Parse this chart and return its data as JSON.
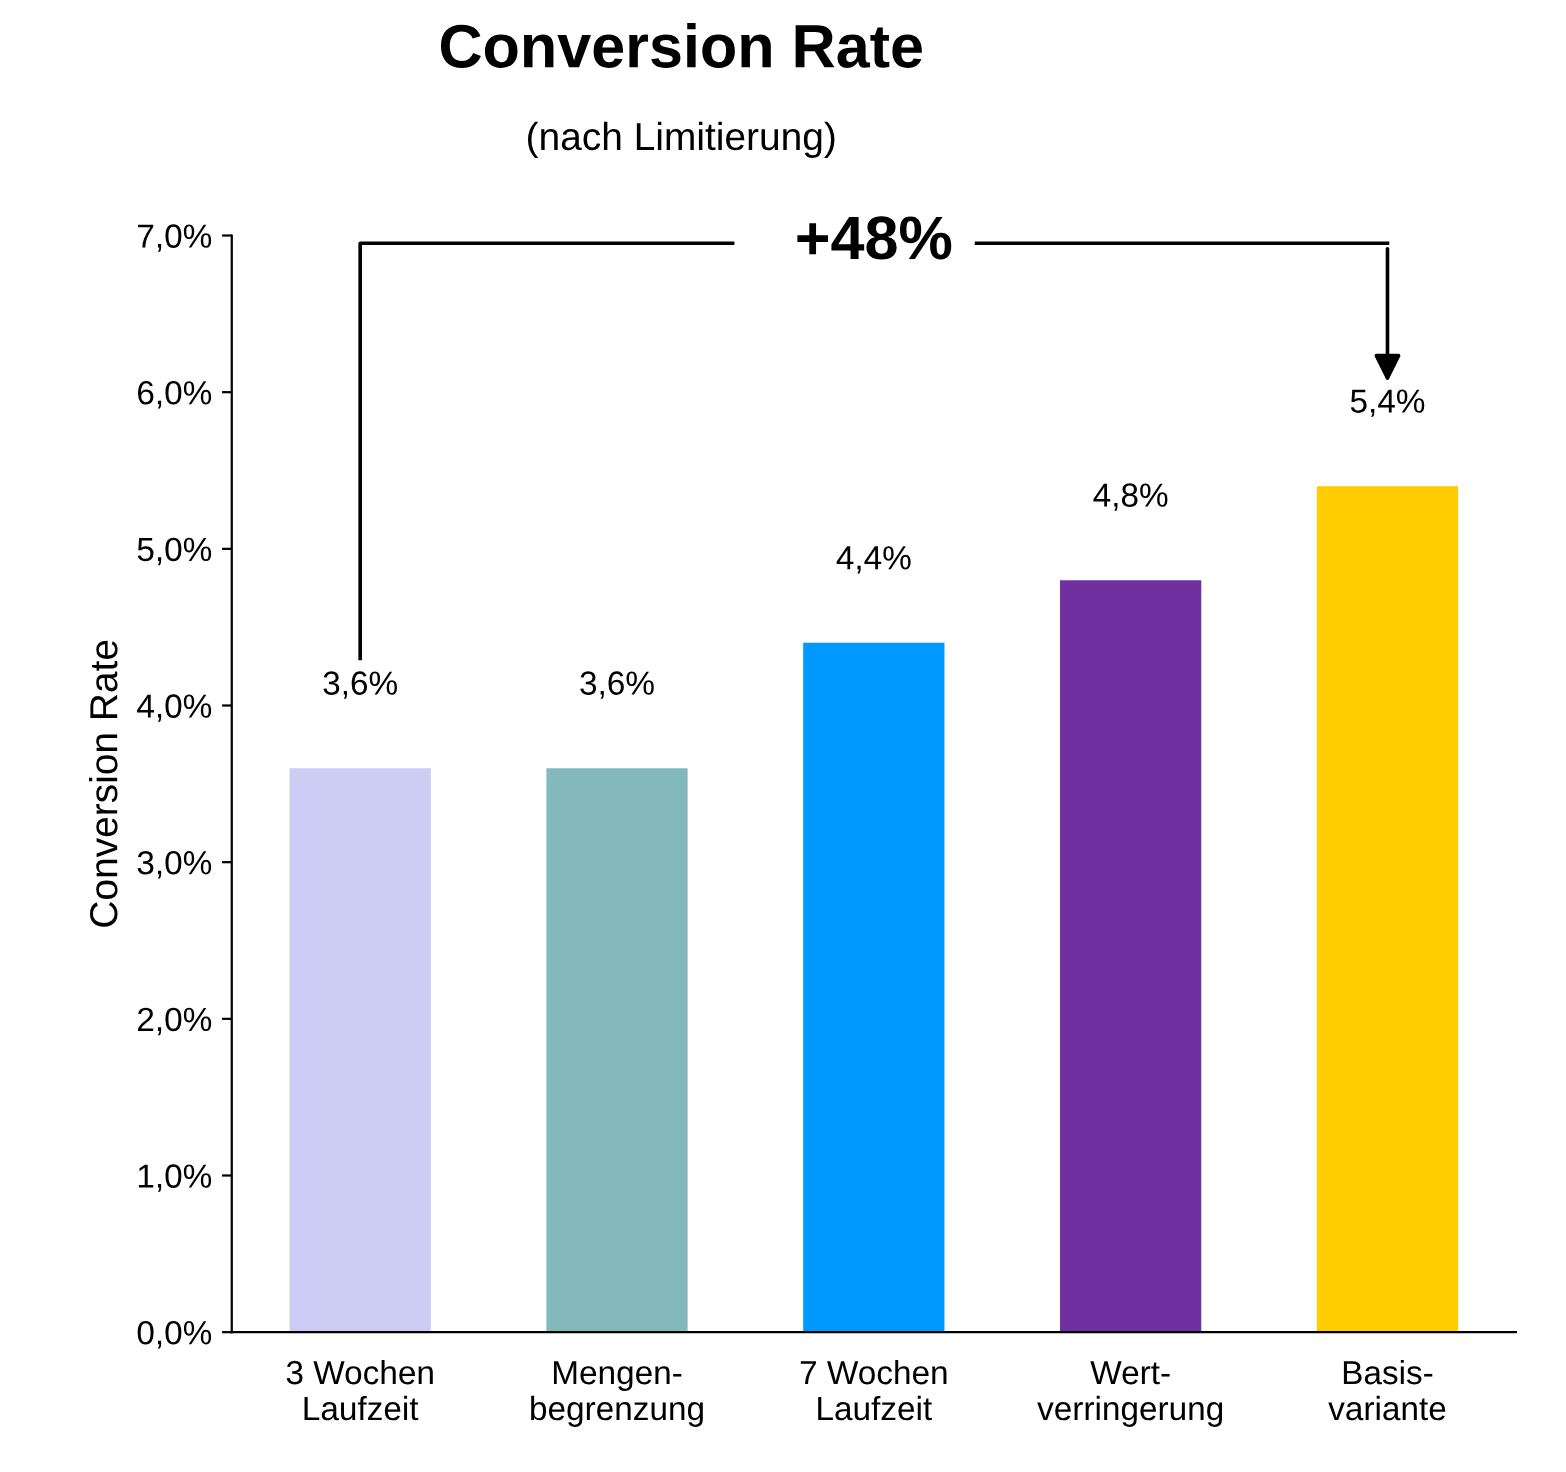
{
  "chart_data": {
    "type": "bar",
    "title": "Conversion Rate",
    "subtitle": "(nach Limitierung)",
    "ylabel": "Conversion Rate",
    "categories": [
      "3 Wochen\nLaufzeit",
      "Mengen-\nbegrenzung",
      "7 Wochen\nLaufzeit",
      "Wert-\nverringerung",
      "Basis-\nvariante"
    ],
    "values": [
      3.6,
      3.6,
      4.4,
      4.8,
      5.4
    ],
    "value_labels": [
      "3,6%",
      "3,6%",
      "4,4%",
      "4,8%",
      "5,4%"
    ],
    "colors": [
      "#ccccf4",
      "#84b9bb",
      "#0099ff",
      "#7030a0",
      "#ffcc00"
    ],
    "ylim": [
      0,
      7
    ],
    "yticks": [
      {
        "value": 0,
        "label": "0,0%"
      },
      {
        "value": 1,
        "label": "1,0%"
      },
      {
        "value": 2,
        "label": "2,0%"
      },
      {
        "value": 3,
        "label": "3,0%"
      },
      {
        "value": 4,
        "label": "4,0%"
      },
      {
        "value": 5,
        "label": "5,0%"
      },
      {
        "value": 6,
        "label": "6,0%"
      },
      {
        "value": 7,
        "label": "7,0%"
      }
    ],
    "grid": false,
    "legend": false,
    "annotations": [
      "+48%"
    ]
  }
}
